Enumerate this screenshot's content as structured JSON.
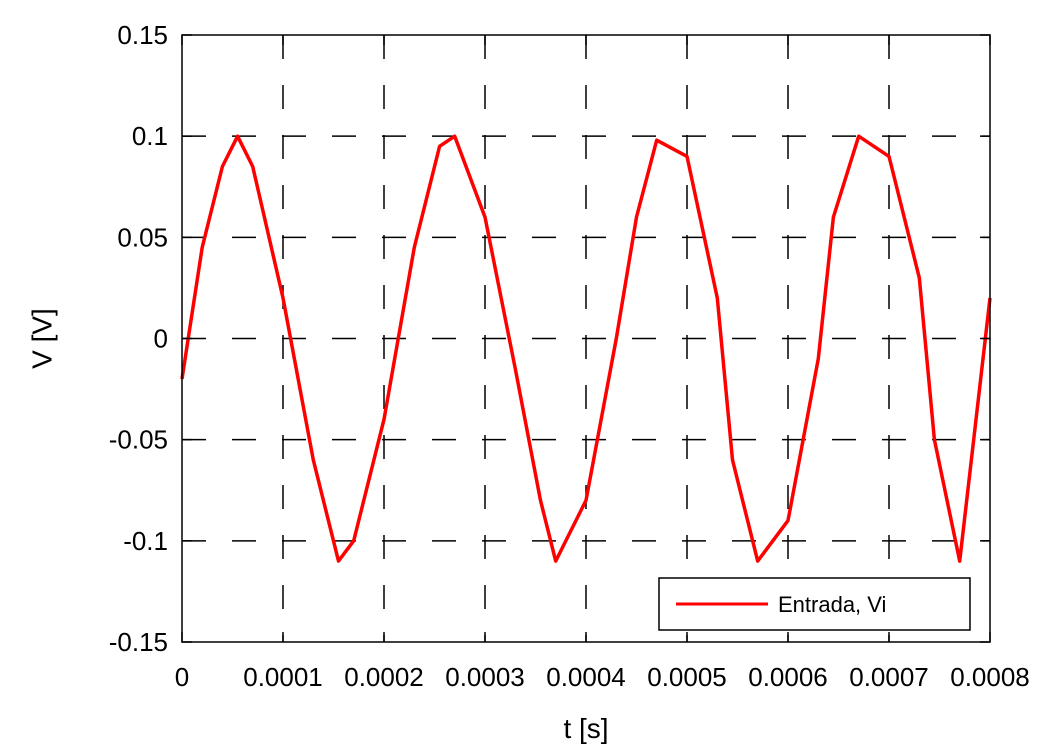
{
  "chart_data": {
    "type": "line",
    "title": "",
    "xlabel": "t [s]",
    "ylabel": "V [V]",
    "xlim": [
      0,
      0.0008
    ],
    "ylim": [
      -0.15,
      0.15
    ],
    "x_ticks": [
      0,
      0.0001,
      0.0002,
      0.0003,
      0.0004,
      0.0005,
      0.0006,
      0.0007,
      0.0008
    ],
    "x_tick_labels": [
      "0",
      "0.0001",
      "0.0002",
      "0.0003",
      "0.0004",
      "0.0005",
      "0.0006",
      "0.0007",
      "0.0008"
    ],
    "y_ticks": [
      -0.15,
      -0.1,
      -0.05,
      0,
      0.05,
      0.1,
      0.15
    ],
    "y_tick_labels": [
      "-0.15",
      "-0.1",
      "-0.05",
      "0",
      "0.05",
      "0.1",
      "0.15"
    ],
    "grid": true,
    "legend_position": "bottom-right",
    "series": [
      {
        "name": "Entrada, Vi",
        "color": "#ff0000",
        "x": [
          0,
          2e-05,
          4e-05,
          5.5e-05,
          7e-05,
          0.0001,
          0.00013,
          0.000155,
          0.00017,
          0.0002,
          0.00023,
          0.000255,
          0.00027,
          0.0003,
          0.00033,
          0.000355,
          0.00037,
          0.0004,
          0.00043,
          0.00045,
          0.00047,
          0.0005,
          0.00053,
          0.000545,
          0.00057,
          0.0006,
          0.00063,
          0.000645,
          0.00067,
          0.0007,
          0.00073,
          0.000745,
          0.00077,
          0.0008
        ],
        "y": [
          -0.02,
          0.045,
          0.085,
          0.1,
          0.085,
          0.02,
          -0.06,
          -0.11,
          -0.1,
          -0.04,
          0.045,
          0.095,
          0.1,
          0.06,
          -0.015,
          -0.08,
          -0.11,
          -0.08,
          0.0,
          0.06,
          0.098,
          0.09,
          0.02,
          -0.06,
          -0.11,
          -0.09,
          -0.01,
          0.06,
          0.1,
          0.09,
          0.03,
          -0.05,
          -0.11,
          0.02
        ]
      }
    ]
  }
}
